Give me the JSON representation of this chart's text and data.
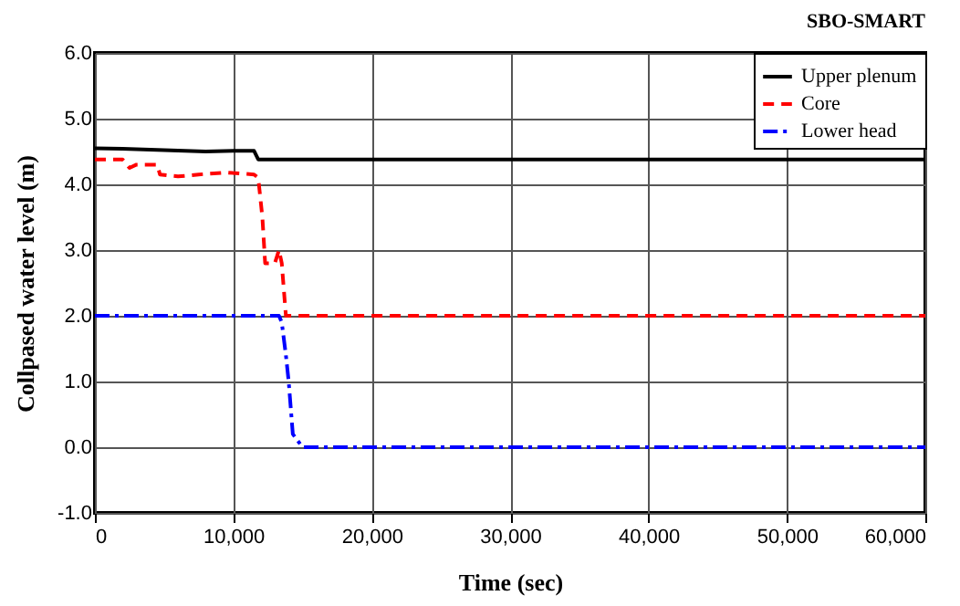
{
  "chart_data": {
    "type": "line",
    "title": "SBO-SMART",
    "xlabel": "Time (sec)",
    "ylabel": "Collpased water level (m)",
    "xlim": [
      0,
      60000
    ],
    "xticks": [
      0,
      {
        "value": 10000,
        "label": "10,000"
      },
      {
        "value": 20000,
        "label": "20,000"
      },
      {
        "value": 30000,
        "label": "30,000"
      },
      {
        "value": 40000,
        "label": "40,000"
      },
      {
        "value": 50000,
        "label": "50,000"
      },
      {
        "value": 60000,
        "label": "60,000"
      }
    ],
    "ylim": [
      -1,
      6
    ],
    "yticks": [
      {
        "value": -1,
        "label": "-1.0"
      },
      {
        "value": 0,
        "label": "0.0"
      },
      {
        "value": 1,
        "label": "1.0"
      },
      {
        "value": 2,
        "label": "2.0"
      },
      {
        "value": 3,
        "label": "3.0"
      },
      {
        "value": 4,
        "label": "4.0"
      },
      {
        "value": 5,
        "label": "5.0"
      },
      {
        "value": 6,
        "label": "6.0"
      }
    ],
    "grid": true,
    "legend": "top right",
    "series": [
      {
        "name": "Upper plenum",
        "color": "#000000",
        "line_style": "solid",
        "x": [
          0,
          2000,
          5000,
          8000,
          10000,
          11500,
          11800,
          60000
        ],
        "values": [
          4.55,
          4.54,
          4.52,
          4.5,
          4.51,
          4.51,
          4.38,
          4.38
        ]
      },
      {
        "name": "Core",
        "color": "#ff0000",
        "line_style": "dashed",
        "x": [
          0,
          2000,
          2500,
          3000,
          4500,
          4700,
          6000,
          7500,
          9500,
          11500,
          11800,
          12100,
          12300,
          13000,
          13300,
          13500,
          13800,
          60000
        ],
        "values": [
          4.38,
          4.38,
          4.25,
          4.3,
          4.3,
          4.15,
          4.12,
          4.15,
          4.18,
          4.15,
          4.1,
          3.5,
          2.8,
          2.8,
          3.0,
          2.8,
          2.0,
          2.0
        ]
      },
      {
        "name": "Lower head",
        "color": "#0000ff",
        "line_style": "dashdot",
        "x": [
          0,
          13300,
          13500,
          13800,
          14000,
          14300,
          15000,
          60000
        ],
        "values": [
          2.0,
          2.0,
          1.9,
          1.4,
          1.0,
          0.2,
          0.0,
          0.0
        ]
      }
    ]
  }
}
